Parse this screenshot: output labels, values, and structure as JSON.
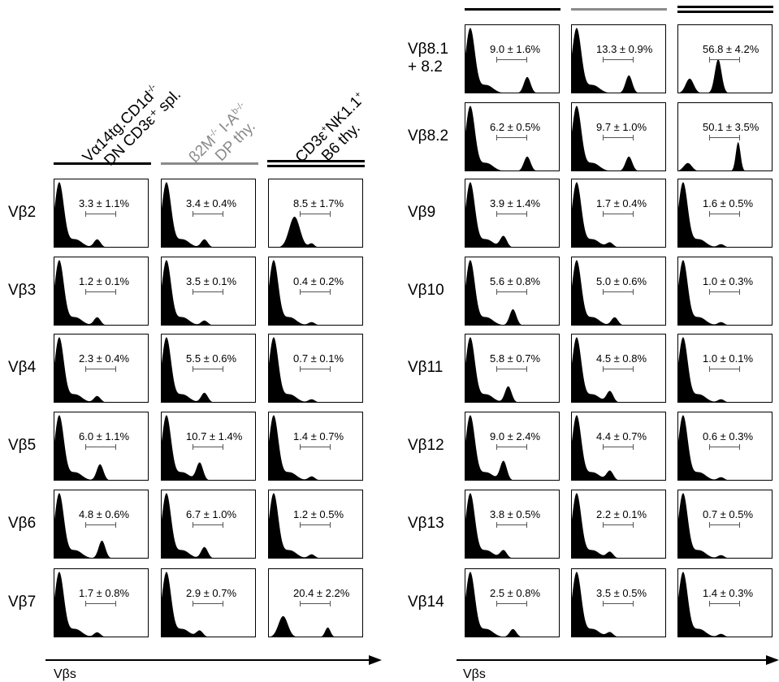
{
  "columns": [
    {
      "lines": [
        "Vα14tg.CD1d",
        "DN CD3ε⁺ spl."
      ],
      "sup": "-/-",
      "color": "#000000",
      "bar": "black"
    },
    {
      "lines": [
        "β2M-/- I-Ab-/-",
        "DP thy."
      ],
      "color": "#8a8a8a",
      "bar": "gray"
    },
    {
      "lines": [
        "CD3ε⁺NK1.1⁺",
        "B6 thy."
      ],
      "color": "#000000",
      "bar": "double"
    }
  ],
  "left_rows": [
    {
      "label": "Vβ2",
      "values": [
        "3.3 ± 1.1%",
        "3.4 ± 0.4%",
        "8.5 ± 1.7%"
      ]
    },
    {
      "label": "Vβ3",
      "values": [
        "1.2 ± 0.1%",
        "3.5 ± 0.1%",
        "0.4 ± 0.2%"
      ]
    },
    {
      "label": "Vβ4",
      "values": [
        "2.3 ± 0.4%",
        "5.5 ± 0.6%",
        "0.7 ± 0.1%"
      ]
    },
    {
      "label": "Vβ5",
      "values": [
        "6.0 ± 1.1%",
        "10.7 ± 1.4%",
        "1.4 ± 0.7%"
      ]
    },
    {
      "label": "Vβ6",
      "values": [
        "4.8 ± 0.6%",
        "6.7 ± 1.0%",
        "1.2 ± 0.5%"
      ]
    },
    {
      "label": "Vβ7",
      "values": [
        "1.7 ± 0.8%",
        "2.9 ± 0.7%",
        "20.4 ± 2.2%"
      ]
    }
  ],
  "right_rows": [
    {
      "label": "Vβ8.1\n+ 8.2",
      "values": [
        "9.0 ± 1.6%",
        "13.3 ± 0.9%",
        "56.8 ± 4.2%"
      ]
    },
    {
      "label": "Vβ8.2",
      "values": [
        "6.2 ± 0.5%",
        "9.7 ± 1.0%",
        "50.1 ± 3.5%"
      ]
    },
    {
      "label": "Vβ9",
      "values": [
        "3.9 ± 1.4%",
        "1.7 ± 0.4%",
        "1.6 ± 0.5%"
      ]
    },
    {
      "label": "Vβ10",
      "values": [
        "5.6 ± 0.8%",
        "5.0 ± 0.6%",
        "1.0 ± 0.3%"
      ]
    },
    {
      "label": "Vβ11",
      "values": [
        "5.8 ± 0.7%",
        "4.5 ± 0.8%",
        "1.0 ± 0.1%"
      ]
    },
    {
      "label": "Vβ12",
      "values": [
        "9.0 ± 2.4%",
        "4.4 ± 0.7%",
        "0.6 ± 0.3%"
      ]
    },
    {
      "label": "Vβ13",
      "values": [
        "3.8 ± 0.5%",
        "2.2 ± 0.1%",
        "0.7 ± 0.5%"
      ]
    },
    {
      "label": "Vβ14",
      "values": [
        "2.5 ± 0.8%",
        "3.5 ± 0.5%",
        "1.4 ± 0.3%"
      ]
    }
  ],
  "x_axis_label": "Vβs"
}
